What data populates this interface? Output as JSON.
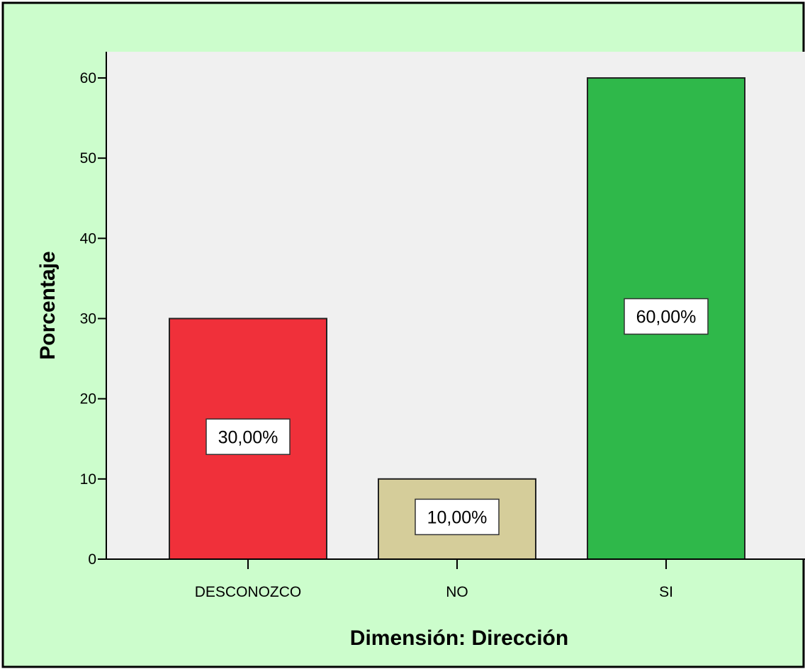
{
  "chart_data": {
    "type": "bar",
    "xlabel": "Dimensión: Dirección",
    "ylabel": "Porcentaje",
    "categories": [
      "DESCONOZCO",
      "NO",
      "SI"
    ],
    "values": [
      30,
      10,
      60
    ],
    "value_labels": [
      "30,00%",
      "10,00%",
      "60,00%"
    ],
    "yticks": [
      "0",
      "10",
      "20",
      "30",
      "40",
      "50",
      "60"
    ],
    "ylim": [
      0,
      66.4
    ],
    "grid": false,
    "legend": "none"
  },
  "colors": {
    "background": "#ccfdcc",
    "plot_area": "#f0f0f0",
    "bars": [
      "#f0303a",
      "#d5cd9a",
      "#2fb84a"
    ],
    "bar_stroke": "#222222",
    "label_box": "#ffffff"
  }
}
